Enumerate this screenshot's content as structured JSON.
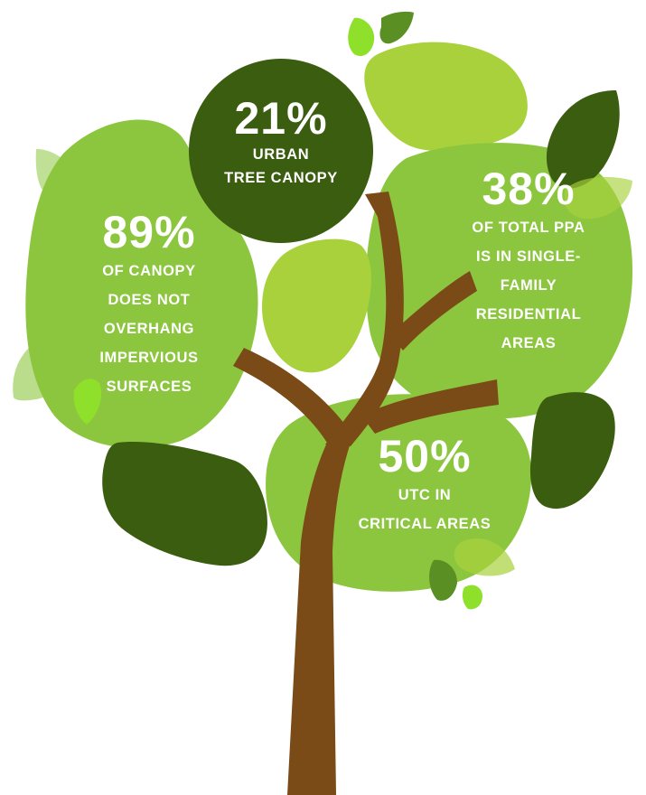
{
  "colors": {
    "dark_green": "#3a5d0f",
    "mid_green": "#8cc63f",
    "light_green": "#a8d13c",
    "pale_green": "#b5d98c",
    "trunk_brown": "#7a4a17",
    "text": "#ffffff"
  },
  "stats": [
    {
      "value": "21%",
      "lines": [
        "URBAN",
        "TREE CANOPY"
      ]
    },
    {
      "value": "89%",
      "lines": [
        "OF CANOPY",
        "DOES NOT",
        "OVERHANG",
        "IMPERVIOUS",
        "SURFACES"
      ]
    },
    {
      "value": "38%",
      "lines": [
        "OF TOTAL PPA",
        "IS IN SINGLE-",
        "FAMILY",
        "RESIDENTIAL",
        "AREAS"
      ]
    },
    {
      "value": "50%",
      "lines": [
        "UTC IN",
        "CRITICAL AREAS"
      ]
    }
  ]
}
